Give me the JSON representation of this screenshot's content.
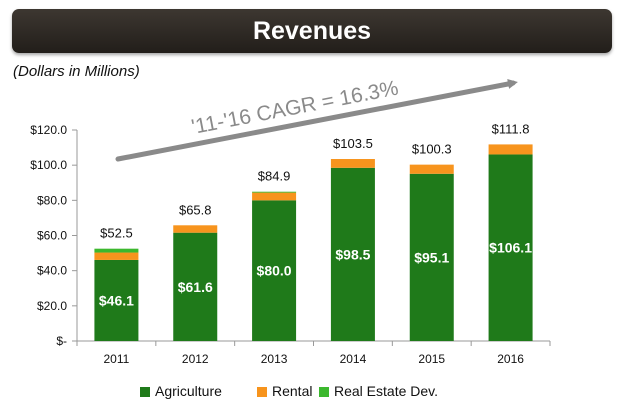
{
  "header": {
    "title": "Revenues"
  },
  "subtitle": "(Dollars in Millions)",
  "annotation": {
    "text": "'11-'16 CAGR = 16.3%"
  },
  "colors": {
    "agriculture": "#1f7a1a",
    "rental": "#f7941d",
    "real_estate": "#3cb82e",
    "arrow": "#8a8a8a",
    "axis": "#999999",
    "text": "#111111",
    "banner": "#2b2621"
  },
  "chart_data": {
    "type": "bar",
    "stacked": true,
    "categories": [
      "2011",
      "2012",
      "2013",
      "2014",
      "2015",
      "2016"
    ],
    "series": [
      {
        "name": "Agriculture",
        "values": [
          46.1,
          61.6,
          80.0,
          98.5,
          95.1,
          106.1
        ]
      },
      {
        "name": "Rental",
        "values": [
          4.2,
          4.2,
          4.4,
          5.0,
          5.2,
          5.7
        ]
      },
      {
        "name": "Real Estate Dev.",
        "values": [
          2.2,
          0.0,
          0.5,
          0.0,
          0.0,
          0.0
        ]
      }
    ],
    "segment_labels": [
      "$46.1",
      "$61.6",
      "$80.0",
      "$98.5",
      "$95.1",
      "$106.1"
    ],
    "total_labels": [
      "$52.5",
      "$65.8",
      "$84.9",
      "$103.5",
      "$100.3",
      "$111.8"
    ],
    "yticks": [
      "$-",
      "$20.0",
      "$40.0",
      "$60.0",
      "$80.0",
      "$100.0",
      "$120.0"
    ],
    "ylim": [
      0,
      120
    ],
    "ystep": 20,
    "legend_position": "bottom",
    "grid": false
  }
}
